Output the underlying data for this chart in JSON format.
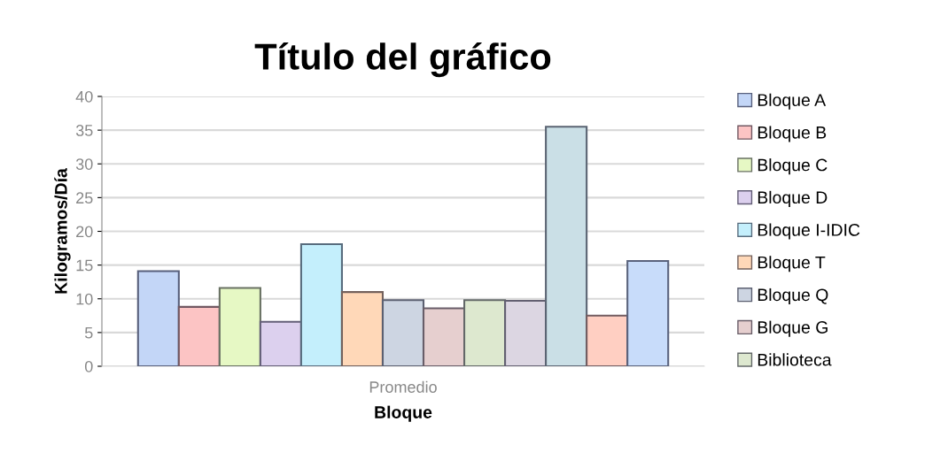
{
  "chart_data": {
    "type": "bar",
    "title": "Título del gráfico",
    "xlabel": "Bloque",
    "ylabel": "Kilogramos/Día",
    "categories": [
      "Promedio"
    ],
    "series": [
      {
        "name": "Bloque A",
        "color": "#c3d6f7",
        "values": [
          14.1
        ]
      },
      {
        "name": "Bloque B",
        "color": "#fcc4c4",
        "values": [
          8.8
        ]
      },
      {
        "name": "Bloque C",
        "color": "#e6f8c4",
        "values": [
          11.6
        ]
      },
      {
        "name": "Bloque D",
        "color": "#dcd0ee",
        "values": [
          6.6
        ]
      },
      {
        "name": "Bloque I-IDIC",
        "color": "#c4effc",
        "values": [
          18.1
        ]
      },
      {
        "name": "Bloque T",
        "color": "#ffd8b8",
        "values": [
          11.0
        ]
      },
      {
        "name": "Bloque Q",
        "color": "#cdd5e2",
        "values": [
          9.8
        ]
      },
      {
        "name": "Bloque G",
        "color": "#e6cfcf",
        "values": [
          8.6
        ]
      },
      {
        "name": "Biblioteca",
        "color": "#dde8cf",
        "values": [
          9.8
        ]
      },
      {
        "color": "#dcd6e2",
        "values": [
          9.7
        ]
      },
      {
        "color": "#cadfe6",
        "values": [
          35.5
        ]
      },
      {
        "color": "#ffcfc2",
        "values": [
          7.5
        ]
      },
      {
        "color": "#c8dcfa",
        "values": [
          15.6
        ]
      }
    ],
    "ylim": [
      0,
      40
    ],
    "yticks": [
      0,
      5,
      10,
      15,
      20,
      25,
      30,
      35,
      40
    ],
    "grid": "y",
    "legend": "right"
  }
}
